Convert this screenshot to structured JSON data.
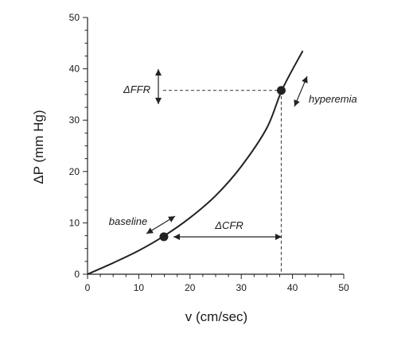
{
  "chart_data": {
    "type": "line",
    "title": "",
    "xlabel": "v (cm/sec)",
    "ylabel": "ΔP (mm Hg)",
    "xlim": [
      0,
      50
    ],
    "ylim": [
      0,
      50
    ],
    "grid": false,
    "legend": "none",
    "x_ticks": [
      "0",
      "10",
      "20",
      "30",
      "40",
      "50"
    ],
    "y_ticks": [
      "0",
      "10",
      "20",
      "30",
      "40",
      "50"
    ],
    "x_tick_values": [
      0,
      10,
      20,
      30,
      40,
      50
    ],
    "y_tick_values": [
      0,
      10,
      20,
      30,
      40,
      50
    ],
    "series": [
      {
        "x": [
          0,
          5,
          10,
          15,
          20,
          25,
          30,
          35,
          38,
          42
        ],
        "y": [
          0,
          2.2,
          4.6,
          7.5,
          11.0,
          15.3,
          21.0,
          28.5,
          36.0,
          43.5
        ]
      }
    ],
    "points": [
      {
        "label": "baseline",
        "x": 14.9,
        "y": 7.3
      },
      {
        "label": "hyperemia",
        "x": 37.8,
        "y": 35.8
      }
    ],
    "annotations": {
      "baseline": "baseline",
      "hyperemia": "hyperemia",
      "delta_ffr": "ΔFFR",
      "delta_cfr": "ΔCFR"
    },
    "colors": {
      "line": "#222222",
      "axis": "#222222",
      "guide": "#333333",
      "arrow": "#222222"
    }
  }
}
